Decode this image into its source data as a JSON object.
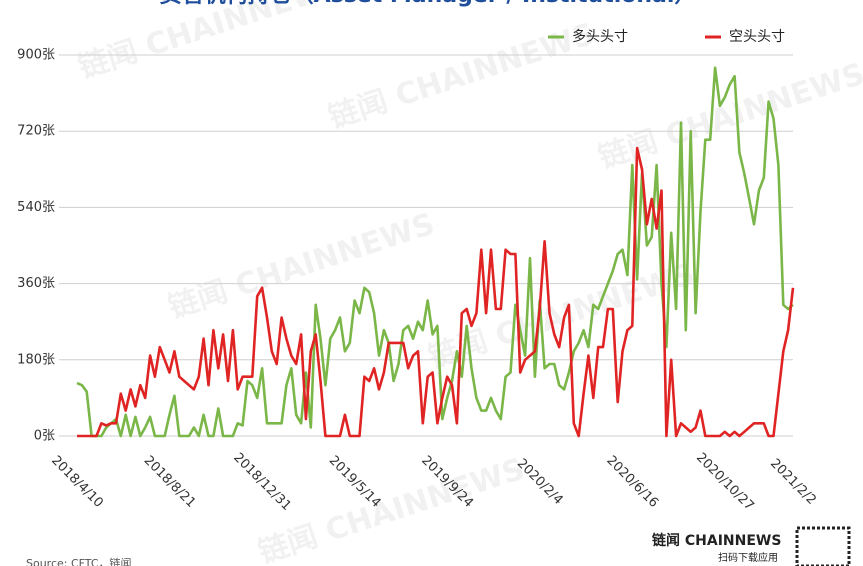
{
  "chart_data": {
    "type": "line",
    "title": "资管机构持仓（Asset Manager / Institutional）",
    "watermark": "链闻 CHAINNEWS",
    "source": "Source: CFTC，链闻",
    "brand": "链闻 CHAINNEWS",
    "brand_sub": "扫码下载应用",
    "categories": [
      "2018/4/10",
      null,
      null,
      null,
      null,
      null,
      null,
      null,
      null,
      null,
      null,
      null,
      null,
      null,
      null,
      null,
      null,
      null,
      null,
      "2018/8/21",
      null,
      null,
      null,
      null,
      null,
      null,
      null,
      null,
      null,
      null,
      null,
      null,
      null,
      null,
      null,
      null,
      null,
      null,
      "2018/12/31",
      null,
      null,
      null,
      null,
      null,
      null,
      null,
      null,
      null,
      null,
      null,
      null,
      null,
      null,
      null,
      null,
      null,
      null,
      "2019/5/14",
      null,
      null,
      null,
      null,
      null,
      null,
      null,
      null,
      null,
      null,
      null,
      null,
      null,
      null,
      null,
      null,
      null,
      null,
      "2019/9/24",
      null,
      null,
      null,
      null,
      null,
      null,
      null,
      null,
      null,
      null,
      null,
      null,
      null,
      null,
      null,
      null,
      null,
      null,
      "2020/2/4",
      null,
      null,
      null,
      null,
      null,
      null,
      null,
      null,
      null,
      null,
      null,
      null,
      null,
      null,
      null,
      null,
      null,
      null,
      "2020/6/16",
      null,
      null,
      null,
      null,
      null,
      null,
      null,
      null,
      null,
      null,
      null,
      null,
      null,
      null,
      null,
      null,
      null,
      null,
      "2020/10/27",
      null,
      null,
      null,
      null,
      null,
      null,
      null,
      null,
      null,
      null,
      null,
      null,
      null,
      "2021/2/2"
    ],
    "series": [
      {
        "name": "多头头寸",
        "color": "#7ab648",
        "values": [
          125,
          120,
          105,
          0,
          0,
          0,
          20,
          30,
          40,
          0,
          50,
          0,
          45,
          0,
          20,
          45,
          0,
          0,
          0,
          50,
          95,
          0,
          0,
          0,
          20,
          0,
          50,
          0,
          0,
          65,
          0,
          0,
          0,
          30,
          25,
          130,
          120,
          90,
          160,
          30,
          30,
          30,
          30,
          120,
          160,
          50,
          30,
          150,
          20,
          310,
          230,
          120,
          230,
          250,
          280,
          200,
          220,
          320,
          290,
          350,
          340,
          290,
          190,
          250,
          220,
          130,
          170,
          250,
          260,
          230,
          270,
          250,
          320,
          240,
          260,
          40,
          90,
          130,
          200,
          140,
          260,
          160,
          90,
          60,
          60,
          90,
          60,
          40,
          140,
          150,
          310,
          250,
          190,
          420,
          140,
          320,
          160,
          170,
          170,
          120,
          110,
          150,
          200,
          220,
          250,
          210,
          310,
          300,
          330,
          360,
          390,
          430,
          440,
          380,
          640,
          370,
          620,
          450,
          470,
          640,
          360,
          210,
          480,
          300,
          740,
          250,
          720,
          290,
          530,
          700,
          700,
          870,
          780,
          800,
          830,
          850,
          670,
          620,
          560,
          500,
          580,
          610,
          790,
          750,
          640,
          310,
          300,
          310
        ]
      },
      {
        "name": "空头头寸",
        "color": "#e02424",
        "values": [
          0,
          0,
          0,
          0,
          0,
          30,
          25,
          30,
          30,
          100,
          60,
          110,
          70,
          120,
          90,
          190,
          140,
          210,
          180,
          150,
          200,
          140,
          130,
          120,
          110,
          140,
          230,
          120,
          250,
          160,
          240,
          130,
          250,
          110,
          140,
          140,
          140,
          330,
          350,
          280,
          200,
          170,
          280,
          230,
          190,
          170,
          240,
          40,
          200,
          240,
          130,
          0,
          0,
          0,
          0,
          50,
          0,
          0,
          0,
          140,
          130,
          160,
          110,
          150,
          220,
          220,
          220,
          220,
          160,
          190,
          200,
          30,
          140,
          150,
          30,
          90,
          140,
          120,
          30,
          290,
          300,
          260,
          290,
          440,
          290,
          440,
          300,
          300,
          440,
          430,
          430,
          150,
          180,
          190,
          200,
          300,
          460,
          290,
          240,
          210,
          280,
          310,
          30,
          0,
          100,
          190,
          90,
          210,
          210,
          300,
          300,
          80,
          200,
          250,
          260,
          680,
          630,
          500,
          560,
          490,
          580,
          0,
          180,
          0,
          30,
          20,
          10,
          20,
          60,
          0,
          0,
          0,
          0,
          10,
          0,
          10,
          0,
          10,
          20,
          30,
          30,
          30,
          0,
          0,
          100,
          200,
          250,
          350
        ]
      }
    ],
    "ylim": [
      0,
      900
    ],
    "yticks": [
      {
        "value": 0,
        "label": "0张"
      },
      {
        "value": 180,
        "label": "180张"
      },
      {
        "value": 360,
        "label": "360张"
      },
      {
        "value": 540,
        "label": "540张"
      },
      {
        "value": 720,
        "label": "720张"
      },
      {
        "value": 900,
        "label": "900张"
      }
    ],
    "grid": true
  }
}
